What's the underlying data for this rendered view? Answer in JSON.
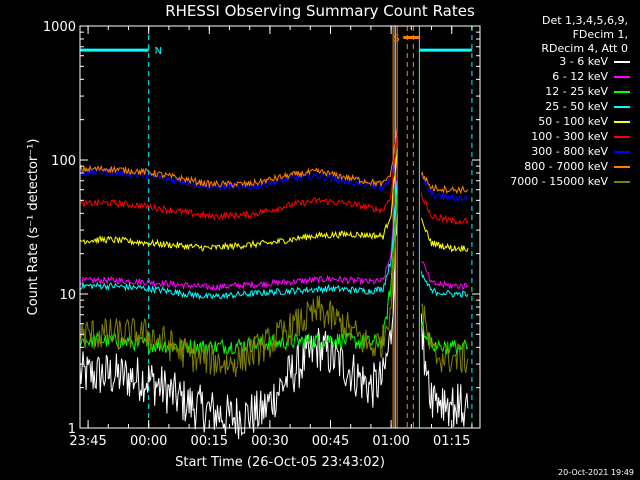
{
  "chart_data": {
    "type": "line",
    "title": "RHESSI Observing Summary Count Rates",
    "xlabel": "Start Time (26-Oct-05 23:43:02)",
    "ylabel": "Count Rate (s⁻¹ detector⁻¹)",
    "yscale": "log",
    "ylim": [
      1,
      1000
    ],
    "y_ticks": [
      1,
      10,
      100,
      1000
    ],
    "x_range_minutes": [
      "23:43",
      "01:22"
    ],
    "x_tick_labels": [
      "23:45",
      "00:00",
      "00:15",
      "00:30",
      "00:45",
      "01:00",
      "01:15"
    ],
    "grid": false,
    "legend_header": [
      "Det 1,3,4,5,6,9,",
      "FDecim 1,",
      "RDecim 4, Att 0"
    ],
    "legend_position": "top-right",
    "series": [
      {
        "name": "3 - 6 keV",
        "color": "#ffffff",
        "x": [
          "23:43",
          "23:50",
          "00:00",
          "00:10",
          "00:20",
          "00:28",
          "00:35",
          "00:42",
          "00:48",
          "00:55",
          "00:58",
          "01:00",
          "01:01.5"
        ],
        "y": [
          2.5,
          2.5,
          2.3,
          1.5,
          1.2,
          1.3,
          2.5,
          4,
          3,
          2,
          2.3,
          5,
          40
        ]
      },
      {
        "name": "6 - 12 keV",
        "color": "#ff00ff",
        "x": [
          "23:43",
          "23:50",
          "00:00",
          "00:15",
          "00:30",
          "00:45",
          "00:55",
          "00:58",
          "01:00",
          "01:01.5"
        ],
        "y": [
          12.5,
          12.7,
          12.3,
          11.2,
          12,
          13,
          12.3,
          12.5,
          20,
          75
        ]
      },
      {
        "name": "12 - 25 keV",
        "color": "#00ff00",
        "x": [
          "23:43",
          "23:50",
          "00:00",
          "00:15",
          "00:30",
          "00:45",
          "00:55",
          "00:58",
          "01:00",
          "01:01.5"
        ],
        "y": [
          4.5,
          4.5,
          4.2,
          4,
          4.3,
          4.6,
          4.3,
          4.5,
          12,
          60
        ]
      },
      {
        "name": "25 - 50 keV",
        "color": "#00ffff",
        "x": [
          "23:43",
          "23:50",
          "00:00",
          "00:15",
          "00:30",
          "00:45",
          "00:55",
          "00:58",
          "01:00",
          "01:01.5"
        ],
        "y": [
          11.5,
          11.5,
          11,
          9.5,
          10.3,
          11,
          10.5,
          11,
          18,
          70
        ]
      },
      {
        "name": "50 - 100 keV",
        "color": "#ffff00",
        "x": [
          "23:43",
          "23:50",
          "00:00",
          "00:15",
          "00:30",
          "00:40",
          "00:50",
          "00:58",
          "01:00",
          "01:01.5"
        ],
        "y": [
          25,
          25.5,
          24,
          22,
          24,
          27,
          28,
          27,
          40,
          120
        ]
      },
      {
        "name": "100 - 300 keV",
        "color": "#ff0000",
        "x": [
          "23:43",
          "23:50",
          "00:00",
          "00:15",
          "00:25",
          "00:35",
          "00:42",
          "00:50",
          "00:58",
          "01:00",
          "01:01.5"
        ],
        "y": [
          47,
          48,
          45,
          38,
          39,
          46,
          50,
          47,
          42,
          55,
          160
        ]
      },
      {
        "name": "300 - 800 keV",
        "color": "#0000ff",
        "x": [
          "23:43",
          "23:50",
          "00:00",
          "00:15",
          "00:25",
          "00:35",
          "00:42",
          "00:50",
          "00:58",
          "01:00",
          "01:01.5"
        ],
        "y": [
          80,
          82,
          77,
          63,
          63,
          72,
          76,
          68,
          62,
          75,
          170
        ]
      },
      {
        "name": "800 - 7000 keV",
        "color": "#ff8000",
        "x": [
          "23:43",
          "23:50",
          "00:00",
          "00:15",
          "00:25",
          "00:35",
          "00:42",
          "00:50",
          "00:58",
          "01:00",
          "01:01.5"
        ],
        "y": [
          85,
          86,
          81,
          66,
          66,
          77,
          82,
          73,
          66,
          80,
          175
        ]
      },
      {
        "name": "7000 - 15000 keV",
        "color": "#808000",
        "x": [
          "23:43",
          "23:50",
          "00:00",
          "00:10",
          "00:20",
          "00:28",
          "00:35",
          "00:42",
          "00:48",
          "00:55",
          "00:58",
          "01:00",
          "01:01.5"
        ],
        "y": [
          5,
          5,
          5,
          3.5,
          3,
          4,
          5.5,
          7.5,
          6,
          4,
          4.5,
          9,
          45
        ]
      }
    ],
    "series_after_gap": [
      {
        "name": "3 - 6 keV",
        "x": [
          "01:07.5",
          "01:10",
          "01:15",
          "01:19"
        ],
        "y": [
          5,
          1.8,
          1.5,
          1.4
        ]
      },
      {
        "name": "6 - 12 keV",
        "x": [
          "01:07.5",
          "01:10",
          "01:15",
          "01:19"
        ],
        "y": [
          18,
          12,
          11.5,
          11.5
        ]
      },
      {
        "name": "12 - 25 keV",
        "x": [
          "01:07.5",
          "01:10",
          "01:15",
          "01:19"
        ],
        "y": [
          6,
          4.2,
          4,
          4
        ]
      },
      {
        "name": "25 - 50 keV",
        "x": [
          "01:07.5",
          "01:10",
          "01:15",
          "01:19"
        ],
        "y": [
          14,
          10.5,
          10,
          10
        ]
      },
      {
        "name": "50 - 100 keV",
        "x": [
          "01:07.5",
          "01:10",
          "01:15",
          "01:19"
        ],
        "y": [
          35,
          24,
          22,
          22
        ]
      },
      {
        "name": "100 - 300 keV",
        "x": [
          "01:07.5",
          "01:10",
          "01:15",
          "01:19"
        ],
        "y": [
          55,
          38,
          35,
          35
        ]
      },
      {
        "name": "300 - 800 keV",
        "x": [
          "01:07.5",
          "01:10",
          "01:15",
          "01:19"
        ],
        "y": [
          75,
          55,
          52,
          52
        ]
      },
      {
        "name": "800 - 7000 keV",
        "x": [
          "01:07.5",
          "01:10",
          "01:15",
          "01:19"
        ],
        "y": [
          80,
          62,
          60,
          60
        ]
      },
      {
        "name": "7000 - 15000 keV",
        "x": [
          "01:07.5",
          "01:10",
          "01:15",
          "01:19"
        ],
        "y": [
          8,
          3.5,
          3.3,
          3.3
        ]
      }
    ],
    "annotations": [
      {
        "label": "N",
        "color": "#00ffff",
        "bar_x": [
          "23:43",
          "00:00"
        ],
        "bar_y": 660
      },
      {
        "label": "S",
        "color": "#ff8000",
        "bar_x": [
          "01:03",
          "01:07"
        ],
        "bar_y": 820
      },
      {
        "label": "",
        "color": "#00ffff",
        "bar_x": [
          "01:07",
          "01:20"
        ],
        "bar_y": 660
      }
    ],
    "vlines": [
      {
        "x": "23:43",
        "color": "#00ffff",
        "style": "dashed"
      },
      {
        "x": "00:00",
        "color": "#00ffff",
        "style": "dashed"
      },
      {
        "x": "01:20",
        "color": "#00ffff",
        "style": "dashed"
      },
      {
        "x": "01:07",
        "color": "#00ffff",
        "style": "solid"
      },
      {
        "x": "01:00.5",
        "color": "#ff8000",
        "style": "solid"
      },
      {
        "x": "01:01.5",
        "color": "#ff8000",
        "style": "solid"
      },
      {
        "x": "01:04",
        "color": "#ff8000",
        "style": "dashed"
      },
      {
        "x": "01:05.5",
        "color": "#ff8000",
        "style": "dashed"
      },
      {
        "x": "01:01",
        "color": "#ffffff",
        "style": "solid"
      }
    ]
  },
  "timestamp": "20-Oct-2021 19:49"
}
